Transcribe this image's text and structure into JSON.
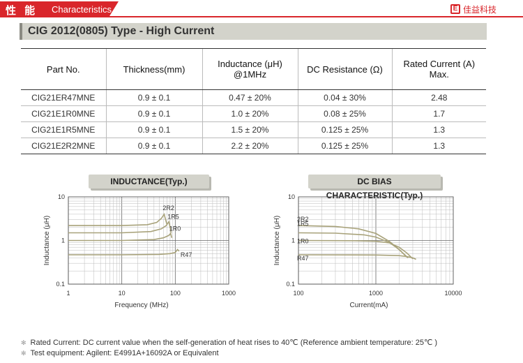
{
  "header": {
    "title_cn": "性 能",
    "title_en": "Characteristics",
    "brand_logo_mark": "E",
    "brand_name": "佳益科技"
  },
  "section_title": "CIG 2012(0805) Type - High Current",
  "table": {
    "headers": [
      [
        "Part No."
      ],
      [
        "Thickness(mm)"
      ],
      [
        "Inductance (μH)",
        "@1MHz"
      ],
      [
        "DC Resistance (Ω)"
      ],
      [
        "Rated Current (A)",
        "Max."
      ]
    ],
    "rows": [
      [
        "CIG21ER47MNE",
        "0.9 ± 0.1",
        "0.47 ± 20%",
        "0.04 ± 30%",
        "2.48"
      ],
      [
        "CIG21E1R0MNE",
        "0.9 ± 0.1",
        "1.0 ± 20%",
        "0.08 ± 25%",
        "1.7"
      ],
      [
        "CIG21E1R5MNE",
        "0.9 ± 0.1",
        "1.5 ± 20%",
        "0.125 ± 25%",
        "1.3"
      ],
      [
        "CIG21E2R2MNE",
        "0.9 ± 0.1",
        "2.2 ± 20%",
        "0.125 ± 25%",
        "1.3"
      ]
    ]
  },
  "chart_data": [
    {
      "type": "line",
      "title": "INDUCTANCE(Typ.)",
      "xlabel": "Frequency (MHz)",
      "ylabel": "Inductance (μH)",
      "x_scale": "log",
      "y_scale": "log",
      "xlim": [
        1,
        1000
      ],
      "ylim": [
        0.1,
        10
      ],
      "x_ticks": [
        "1",
        "10",
        "100",
        "1000"
      ],
      "y_ticks": [
        "10",
        "1",
        "0.1"
      ],
      "grid": true,
      "color": "#a8a27a",
      "series": [
        {
          "name": "2R2",
          "points": [
            [
              1,
              2.2
            ],
            [
              10,
              2.2
            ],
            [
              30,
              2.3
            ],
            [
              45,
              2.6
            ],
            [
              55,
              3.2
            ],
            [
              62,
              4.0
            ],
            [
              66,
              3.0
            ],
            [
              70,
              2.3
            ]
          ]
        },
        {
          "name": "1R5",
          "points": [
            [
              1,
              1.5
            ],
            [
              10,
              1.5
            ],
            [
              35,
              1.6
            ],
            [
              55,
              1.85
            ],
            [
              68,
              2.2
            ],
            [
              76,
              2.7
            ],
            [
              80,
              2.0
            ],
            [
              84,
              1.5
            ]
          ]
        },
        {
          "name": "1R0",
          "points": [
            [
              1,
              1.0
            ],
            [
              10,
              1.0
            ],
            [
              40,
              1.05
            ],
            [
              60,
              1.15
            ],
            [
              75,
              1.3
            ],
            [
              82,
              1.45
            ],
            [
              86,
              1.15
            ]
          ]
        },
        {
          "name": "R47",
          "points": [
            [
              1,
              0.47
            ],
            [
              10,
              0.47
            ],
            [
              50,
              0.48
            ],
            [
              80,
              0.5
            ],
            [
              100,
              0.53
            ],
            [
              110,
              0.62
            ],
            [
              118,
              0.57
            ]
          ]
        }
      ]
    },
    {
      "type": "line",
      "title": "DC BIAS CHARACTERISTIC(Typ.)",
      "xlabel": "Current(mA)",
      "ylabel": "Inductance (μH)",
      "x_scale": "log",
      "y_scale": "log",
      "xlim": [
        100,
        10000
      ],
      "ylim": [
        0.1,
        10
      ],
      "x_ticks": [
        "100",
        "1000",
        "10000"
      ],
      "y_ticks": [
        "10",
        "1",
        "0.1"
      ],
      "grid": true,
      "color": "#a8a27a",
      "series": [
        {
          "name": "2R2",
          "points": [
            [
              100,
              2.2
            ],
            [
              300,
              2.1
            ],
            [
              600,
              1.85
            ],
            [
              1000,
              1.45
            ],
            [
              1500,
              0.95
            ],
            [
              2000,
              0.62
            ],
            [
              2500,
              0.42
            ]
          ]
        },
        {
          "name": "1R5",
          "points": [
            [
              100,
              1.5
            ],
            [
              300,
              1.47
            ],
            [
              700,
              1.35
            ],
            [
              1000,
              1.2
            ],
            [
              1500,
              0.9
            ],
            [
              2000,
              0.62
            ],
            [
              2600,
              0.4
            ]
          ]
        },
        {
          "name": "1R0",
          "points": [
            [
              100,
              1.0
            ],
            [
              500,
              0.99
            ],
            [
              1000,
              0.96
            ],
            [
              1500,
              0.88
            ],
            [
              2000,
              0.7
            ],
            [
              2500,
              0.52
            ],
            [
              3000,
              0.38
            ]
          ]
        },
        {
          "name": "R47",
          "points": [
            [
              100,
              0.47
            ],
            [
              1000,
              0.465
            ],
            [
              2000,
              0.45
            ],
            [
              2500,
              0.43
            ],
            [
              3000,
              0.4
            ],
            [
              3300,
              0.37
            ]
          ]
        }
      ]
    }
  ],
  "notes": [
    "Rated Current: DC current value when the self-generation of heat rises to 40℃ (Reference ambient temperature: 25℃ )",
    "Test equipment: Agilent: E4991A+16092A or Equivalent"
  ]
}
